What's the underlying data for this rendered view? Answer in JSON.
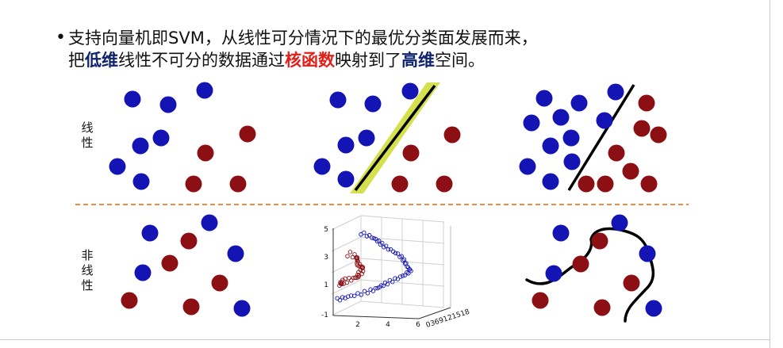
{
  "bullet": {
    "line1": "支持向量机即SVM，从线性可分情况下的最优分类面发展而来，",
    "line2_seg1": "把",
    "line2_kw1": "低维",
    "line2_seg2": "线性不可分的数据通过",
    "line2_kw2": "核函数",
    "line2_seg3": "映射到了",
    "line2_kw3": "高维",
    "line2_seg4": "空间。"
  },
  "labels": {
    "linear": [
      "线",
      "性"
    ],
    "nonlinear": [
      "非",
      "线",
      "性"
    ]
  },
  "colors": {
    "class_a": "#1414b4",
    "class_b": "#8c0f14",
    "divider": "#f08c3c",
    "margin_band": "#d4e04c",
    "kw_blue": "#10246e",
    "kw_red": "#e0201a"
  },
  "plot3d": {
    "z_ticks": [
      "5",
      "3",
      "1",
      "-1"
    ],
    "x_ticks": [
      "2",
      "4",
      "6"
    ],
    "y_ticks": "0369121518"
  }
}
